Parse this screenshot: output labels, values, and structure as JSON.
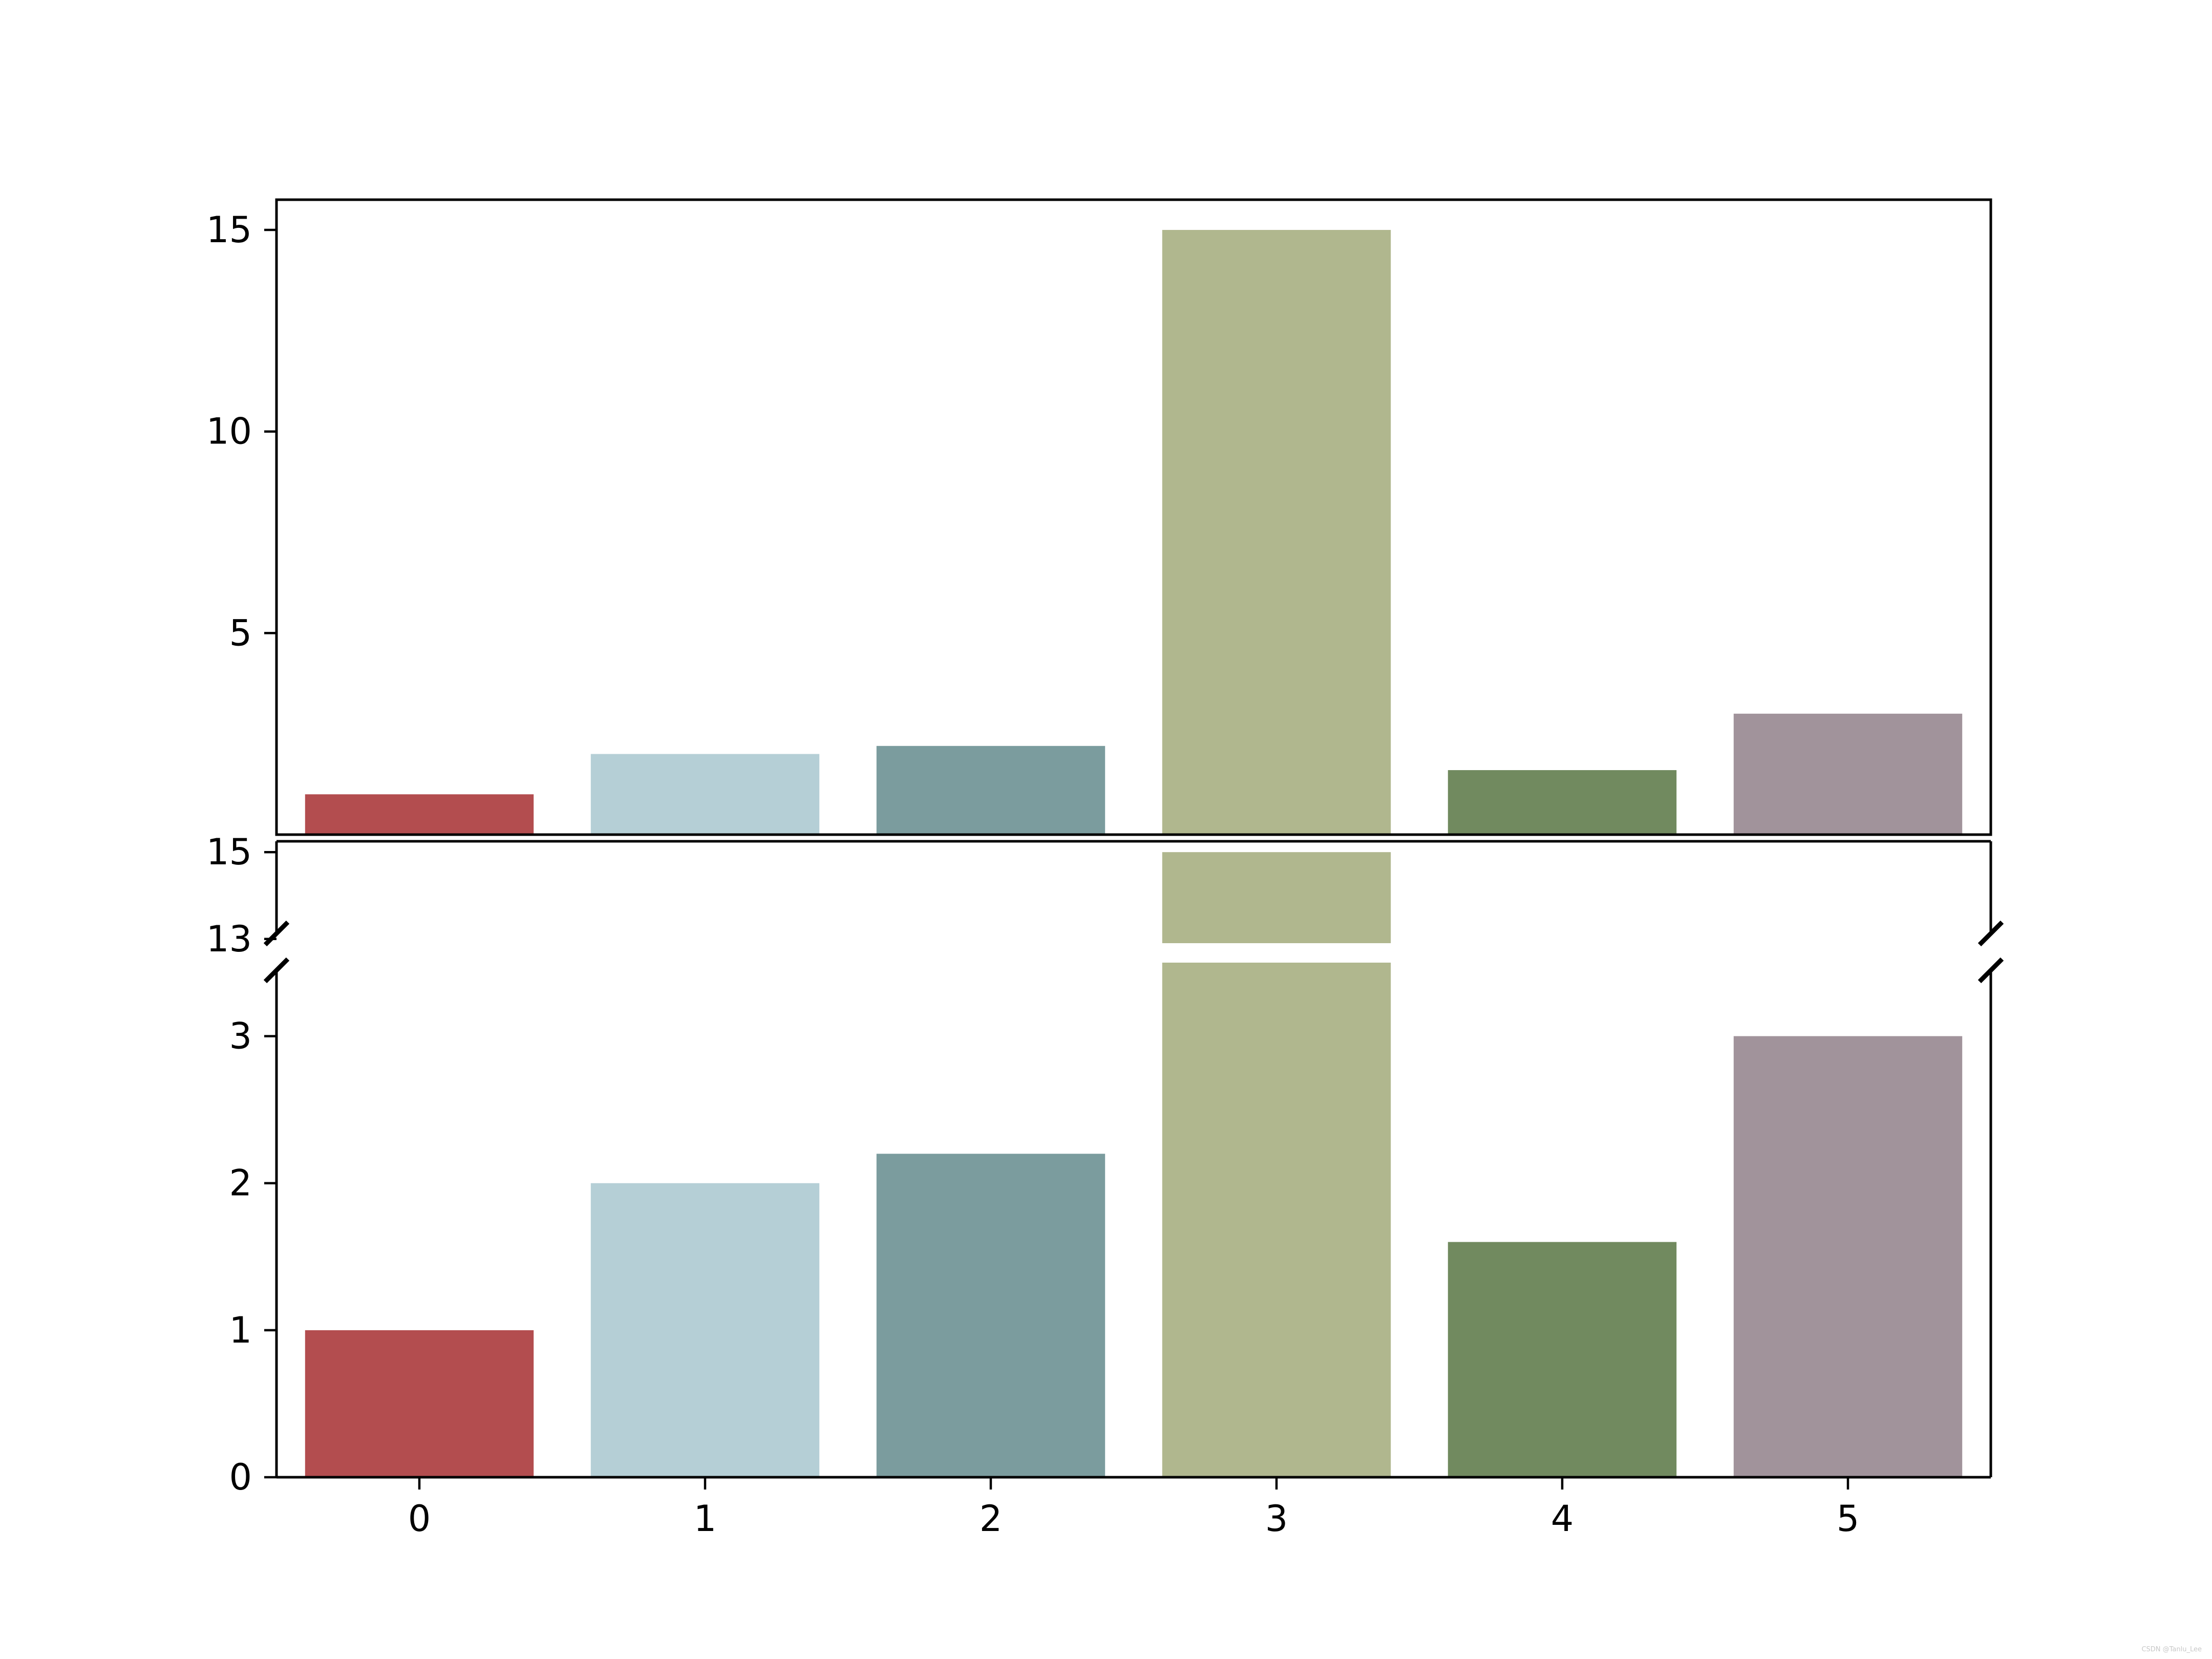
{
  "chart_data": [
    {
      "panel": "top",
      "type": "bar",
      "categories": [
        "0",
        "1",
        "2",
        "3",
        "4",
        "5"
      ],
      "values": [
        1,
        2,
        2.2,
        15,
        1.6,
        3
      ],
      "colors": [
        "#b34d4f",
        "#b5cfd6",
        "#7b9c9e",
        "#b0b78e",
        "#718a5f",
        "#a1939b"
      ],
      "ylim": [
        0,
        15.75
      ],
      "yticks": [
        5,
        10,
        15
      ],
      "ytick_labels": [
        "5",
        "10",
        "15"
      ],
      "xticks_visible": false,
      "grid": false,
      "legend": "none"
    },
    {
      "panel": "bottom",
      "type": "bar",
      "categories": [
        "0",
        "1",
        "2",
        "3",
        "4",
        "5"
      ],
      "values": [
        1,
        2,
        2.2,
        15,
        1.6,
        3
      ],
      "colors": [
        "#b34d4f",
        "#b5cfd6",
        "#7b9c9e",
        "#b0b78e",
        "#718a5f",
        "#a1939b"
      ],
      "broken_axis": {
        "segments": [
          {
            "range": [
              0,
              3.5
            ],
            "ticks": [
              0,
              1,
              2,
              3
            ],
            "tick_labels": [
              "0",
              "1",
              "2",
              "3"
            ]
          },
          {
            "range": [
              12.75,
              15.25
            ],
            "ticks": [
              13,
              15
            ],
            "tick_labels": [
              "13",
              "15"
            ]
          }
        ]
      },
      "xticks": [
        "0",
        "1",
        "2",
        "3",
        "4",
        "5"
      ],
      "grid": false,
      "legend": "none"
    }
  ],
  "watermark": "CSDN @Tanlu_Lee"
}
